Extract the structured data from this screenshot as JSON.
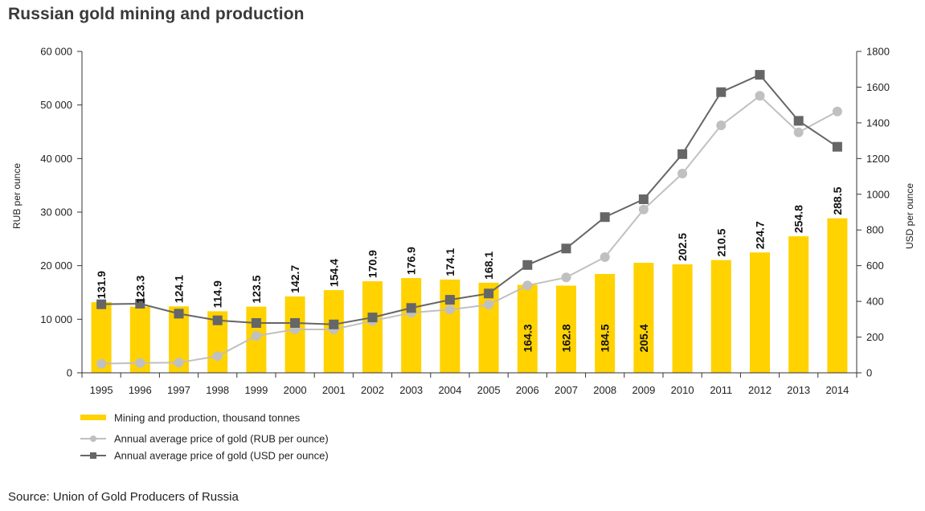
{
  "title": "Russian gold mining and production",
  "source": "Source: Union of Gold Producers of Russia",
  "colors": {
    "bar": "#FFD200",
    "rub_line": "#C0C0C0",
    "usd_line": "#666666",
    "axis": "#333333"
  },
  "chart_data": {
    "type": "bar",
    "categories": [
      "1995",
      "1996",
      "1997",
      "1998",
      "1999",
      "2000",
      "2001",
      "2002",
      "2003",
      "2004",
      "2005",
      "2006",
      "2007",
      "2008",
      "2009",
      "2010",
      "2011",
      "2012",
      "2013",
      "2014"
    ],
    "y_left": {
      "label": "RUB per ounce",
      "range": [
        0,
        60000
      ],
      "ticks": [
        0,
        10000,
        20000,
        30000,
        40000,
        50000,
        60000
      ],
      "tick_labels": [
        "0",
        "10 000",
        "20 000",
        "30 000",
        "40 000",
        "50 000",
        "60 000"
      ]
    },
    "y_right": {
      "label": "USD per ounce",
      "range": [
        0,
        1800
      ],
      "ticks": [
        0,
        200,
        400,
        600,
        800,
        1000,
        1200,
        1400,
        1600,
        1800
      ],
      "tick_labels": [
        "0",
        "200",
        "400",
        "600",
        "800",
        "1000",
        "1200",
        "1400",
        "1600",
        "1800"
      ]
    },
    "grid": false,
    "legend_position": "bottom-left",
    "series": [
      {
        "name": "Mining and production, thousand tonnes",
        "kind": "bar",
        "axis": "left",
        "values": [
          131.9,
          123.3,
          124.1,
          114.9,
          123.5,
          142.7,
          154.4,
          170.9,
          176.9,
          174.1,
          168.1,
          164.3,
          162.8,
          184.5,
          205.4,
          202.5,
          210.5,
          224.7,
          254.8,
          288.5
        ],
        "labels": [
          "131.9",
          "123.3",
          "124.1",
          "114.9",
          "123.5",
          "142.7",
          "154.4",
          "170.9",
          "176.9",
          "174.1",
          "168.1",
          "164.3",
          "162.8",
          "184.5",
          "205.4",
          "202.5",
          "210.5",
          "224.7",
          "254.8",
          "288.5"
        ]
      },
      {
        "name": "Annual average price of gold (RUB per ounce)",
        "kind": "line",
        "marker": "circle",
        "axis": "left",
        "values": [
          1700,
          1850,
          1900,
          3100,
          6900,
          8100,
          8100,
          9700,
          11200,
          11800,
          12700,
          16300,
          17800,
          21600,
          30500,
          37200,
          46200,
          51700,
          44900,
          48800
        ]
      },
      {
        "name": "Annual average price of gold (USD per ounce)",
        "kind": "line",
        "marker": "square",
        "axis": "right",
        "values": [
          384,
          387,
          331,
          294,
          279,
          279,
          271,
          310,
          363,
          409,
          444,
          604,
          696,
          872,
          972,
          1225,
          1572,
          1669,
          1411,
          1266
        ]
      }
    ]
  }
}
